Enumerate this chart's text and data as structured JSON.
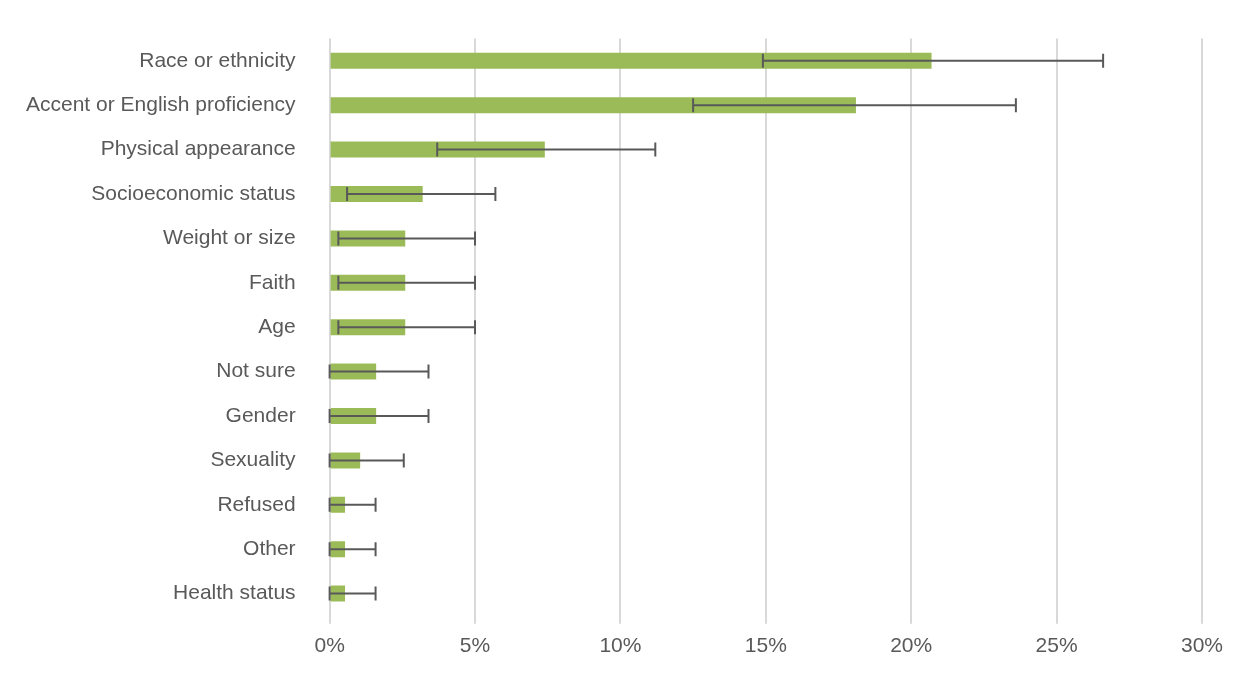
{
  "chart_data": {
    "type": "bar",
    "orientation": "horizontal",
    "categories": [
      "Race or ethnicity",
      "Accent or English proficiency",
      "Physical appearance",
      "Socioeconomic status",
      "Weight or size",
      "Faith",
      "Age",
      "Not sure",
      "Gender",
      "Sexuality",
      "Refused",
      "Other",
      "Health status"
    ],
    "values": [
      20.7,
      18.1,
      7.4,
      3.2,
      2.6,
      2.6,
      2.6,
      1.6,
      1.6,
      1.05,
      0.53,
      0.53,
      0.53
    ],
    "errors": [
      [
        14.9,
        26.6
      ],
      [
        12.5,
        23.6
      ],
      [
        3.7,
        11.2
      ],
      [
        0.6,
        5.7
      ],
      [
        0.3,
        5.0
      ],
      [
        0.3,
        5.0
      ],
      [
        0.3,
        5.0
      ],
      [
        0,
        3.4
      ],
      [
        0,
        3.4
      ],
      [
        0,
        2.55
      ],
      [
        0,
        1.58
      ],
      [
        0,
        1.58
      ],
      [
        0,
        1.58
      ]
    ],
    "color": "#9bbb59",
    "xlim": [
      0,
      30
    ],
    "xticks": [
      {
        "value": 0,
        "label": "0%"
      },
      {
        "value": 5,
        "label": "5%"
      },
      {
        "value": 10,
        "label": "10%"
      },
      {
        "value": 15,
        "label": "15%"
      },
      {
        "value": 20,
        "label": "20%"
      },
      {
        "value": 25,
        "label": "25%"
      },
      {
        "value": 30,
        "label": "30%"
      }
    ],
    "grid": "x",
    "legend": false
  }
}
